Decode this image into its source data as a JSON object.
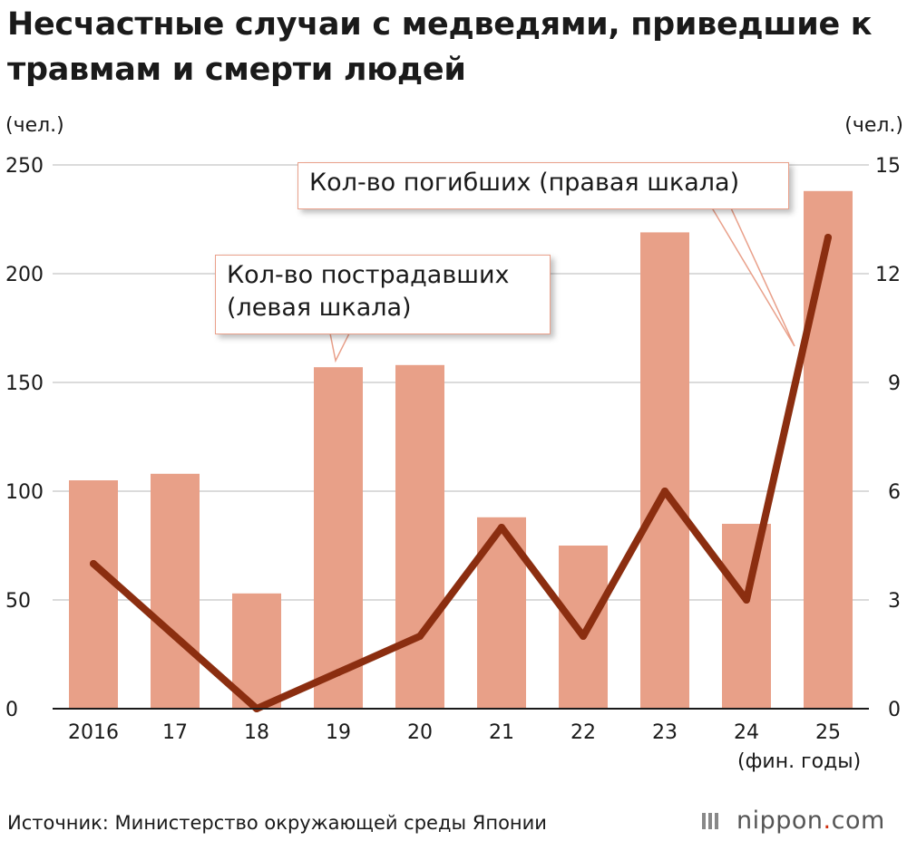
{
  "title": "Несчастные случаи с медведями, приведшие к травмам и смерти людей",
  "chart_data": {
    "type": "bar+line",
    "categories": [
      "2016",
      "17",
      "18",
      "19",
      "20",
      "21",
      "22",
      "23",
      "24",
      "25"
    ],
    "xlabel": "(фин. годы)",
    "y_left": {
      "unit": "(чел.)",
      "ticks": [
        "0",
        "50",
        "100",
        "150",
        "200",
        "250"
      ],
      "ylim": [
        0,
        250
      ]
    },
    "y_right": {
      "unit": "(чел.)",
      "ticks": [
        "0",
        "3",
        "6",
        "9",
        "12",
        "15"
      ],
      "ylim": [
        0,
        15
      ]
    },
    "series": [
      {
        "name": "Кол-во пострадавших (левая шкала)",
        "type": "bar",
        "axis": "left",
        "color": "#e8a088",
        "values": [
          105,
          108,
          53,
          157,
          158,
          88,
          75,
          219,
          85,
          238
        ]
      },
      {
        "name": "Кол-во погибших (правая шкала)",
        "type": "line",
        "axis": "right",
        "color": "#8b2e10",
        "values": [
          4,
          2,
          0,
          1,
          2,
          5,
          2,
          6,
          3,
          13
        ]
      }
    ],
    "annotations": [
      {
        "text": "Кол-во пострадавших (левая шкала)",
        "target": "bars"
      },
      {
        "text": "Кол-во погибших (правая шкала)",
        "target": "line"
      }
    ],
    "grid": true
  },
  "callouts": {
    "injured_line1": "Кол-во пострадавших",
    "injured_line2": "(левая шкала)",
    "deaths": "Кол-во погибших (правая шкала)"
  },
  "source": "Источник: Министерство окружающей среды Японии",
  "logo": {
    "main": "nippon",
    "dot": ".",
    "tail": "com"
  }
}
